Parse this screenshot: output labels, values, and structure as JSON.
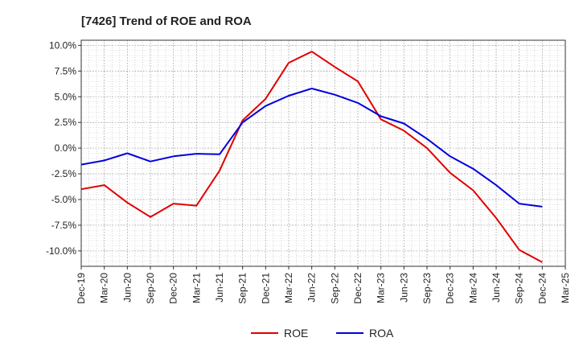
{
  "chart_data": {
    "type": "line",
    "title": "[7426]  Trend of ROE and ROA",
    "xlabel": "",
    "ylabel": "",
    "categories": [
      "Dec-19",
      "Mar-20",
      "Jun-20",
      "Sep-20",
      "Dec-20",
      "Mar-21",
      "Jun-21",
      "Sep-21",
      "Dec-21",
      "Mar-22",
      "Jun-22",
      "Sep-22",
      "Dec-22",
      "Mar-23",
      "Jun-23",
      "Sep-23",
      "Dec-23",
      "Mar-24",
      "Jun-24",
      "Sep-24",
      "Dec-24",
      "Mar-25"
    ],
    "ylim": [
      -11.5,
      10.5
    ],
    "yticks": [
      10.0,
      7.5,
      5.0,
      2.5,
      0.0,
      -2.5,
      -5.0,
      -7.5,
      -10.0
    ],
    "ytick_labels": [
      "10.0%",
      "7.5%",
      "5.0%",
      "2.5%",
      "0.0%",
      "-2.5%",
      "-5.0%",
      "-7.5%",
      "-10.0%"
    ],
    "grid": true,
    "legend_position": "bottom",
    "series": [
      {
        "name": "ROE",
        "color": "#e00000",
        "values": [
          -4.0,
          -3.6,
          -5.3,
          -6.7,
          -5.4,
          -5.6,
          -2.2,
          2.7,
          4.8,
          8.3,
          9.4,
          7.9,
          6.5,
          2.8,
          1.7,
          0.0,
          -2.4,
          -4.1,
          -6.8,
          -9.9,
          -11.1,
          null
        ]
      },
      {
        "name": "ROA",
        "color": "#0000dd",
        "values": [
          -1.6,
          -1.2,
          -0.5,
          -1.3,
          -0.8,
          -0.55,
          -0.6,
          2.5,
          4.1,
          5.1,
          5.8,
          5.2,
          4.4,
          3.1,
          2.4,
          0.9,
          -0.8,
          -2.0,
          -3.6,
          -5.4,
          -5.7,
          null
        ]
      }
    ]
  }
}
